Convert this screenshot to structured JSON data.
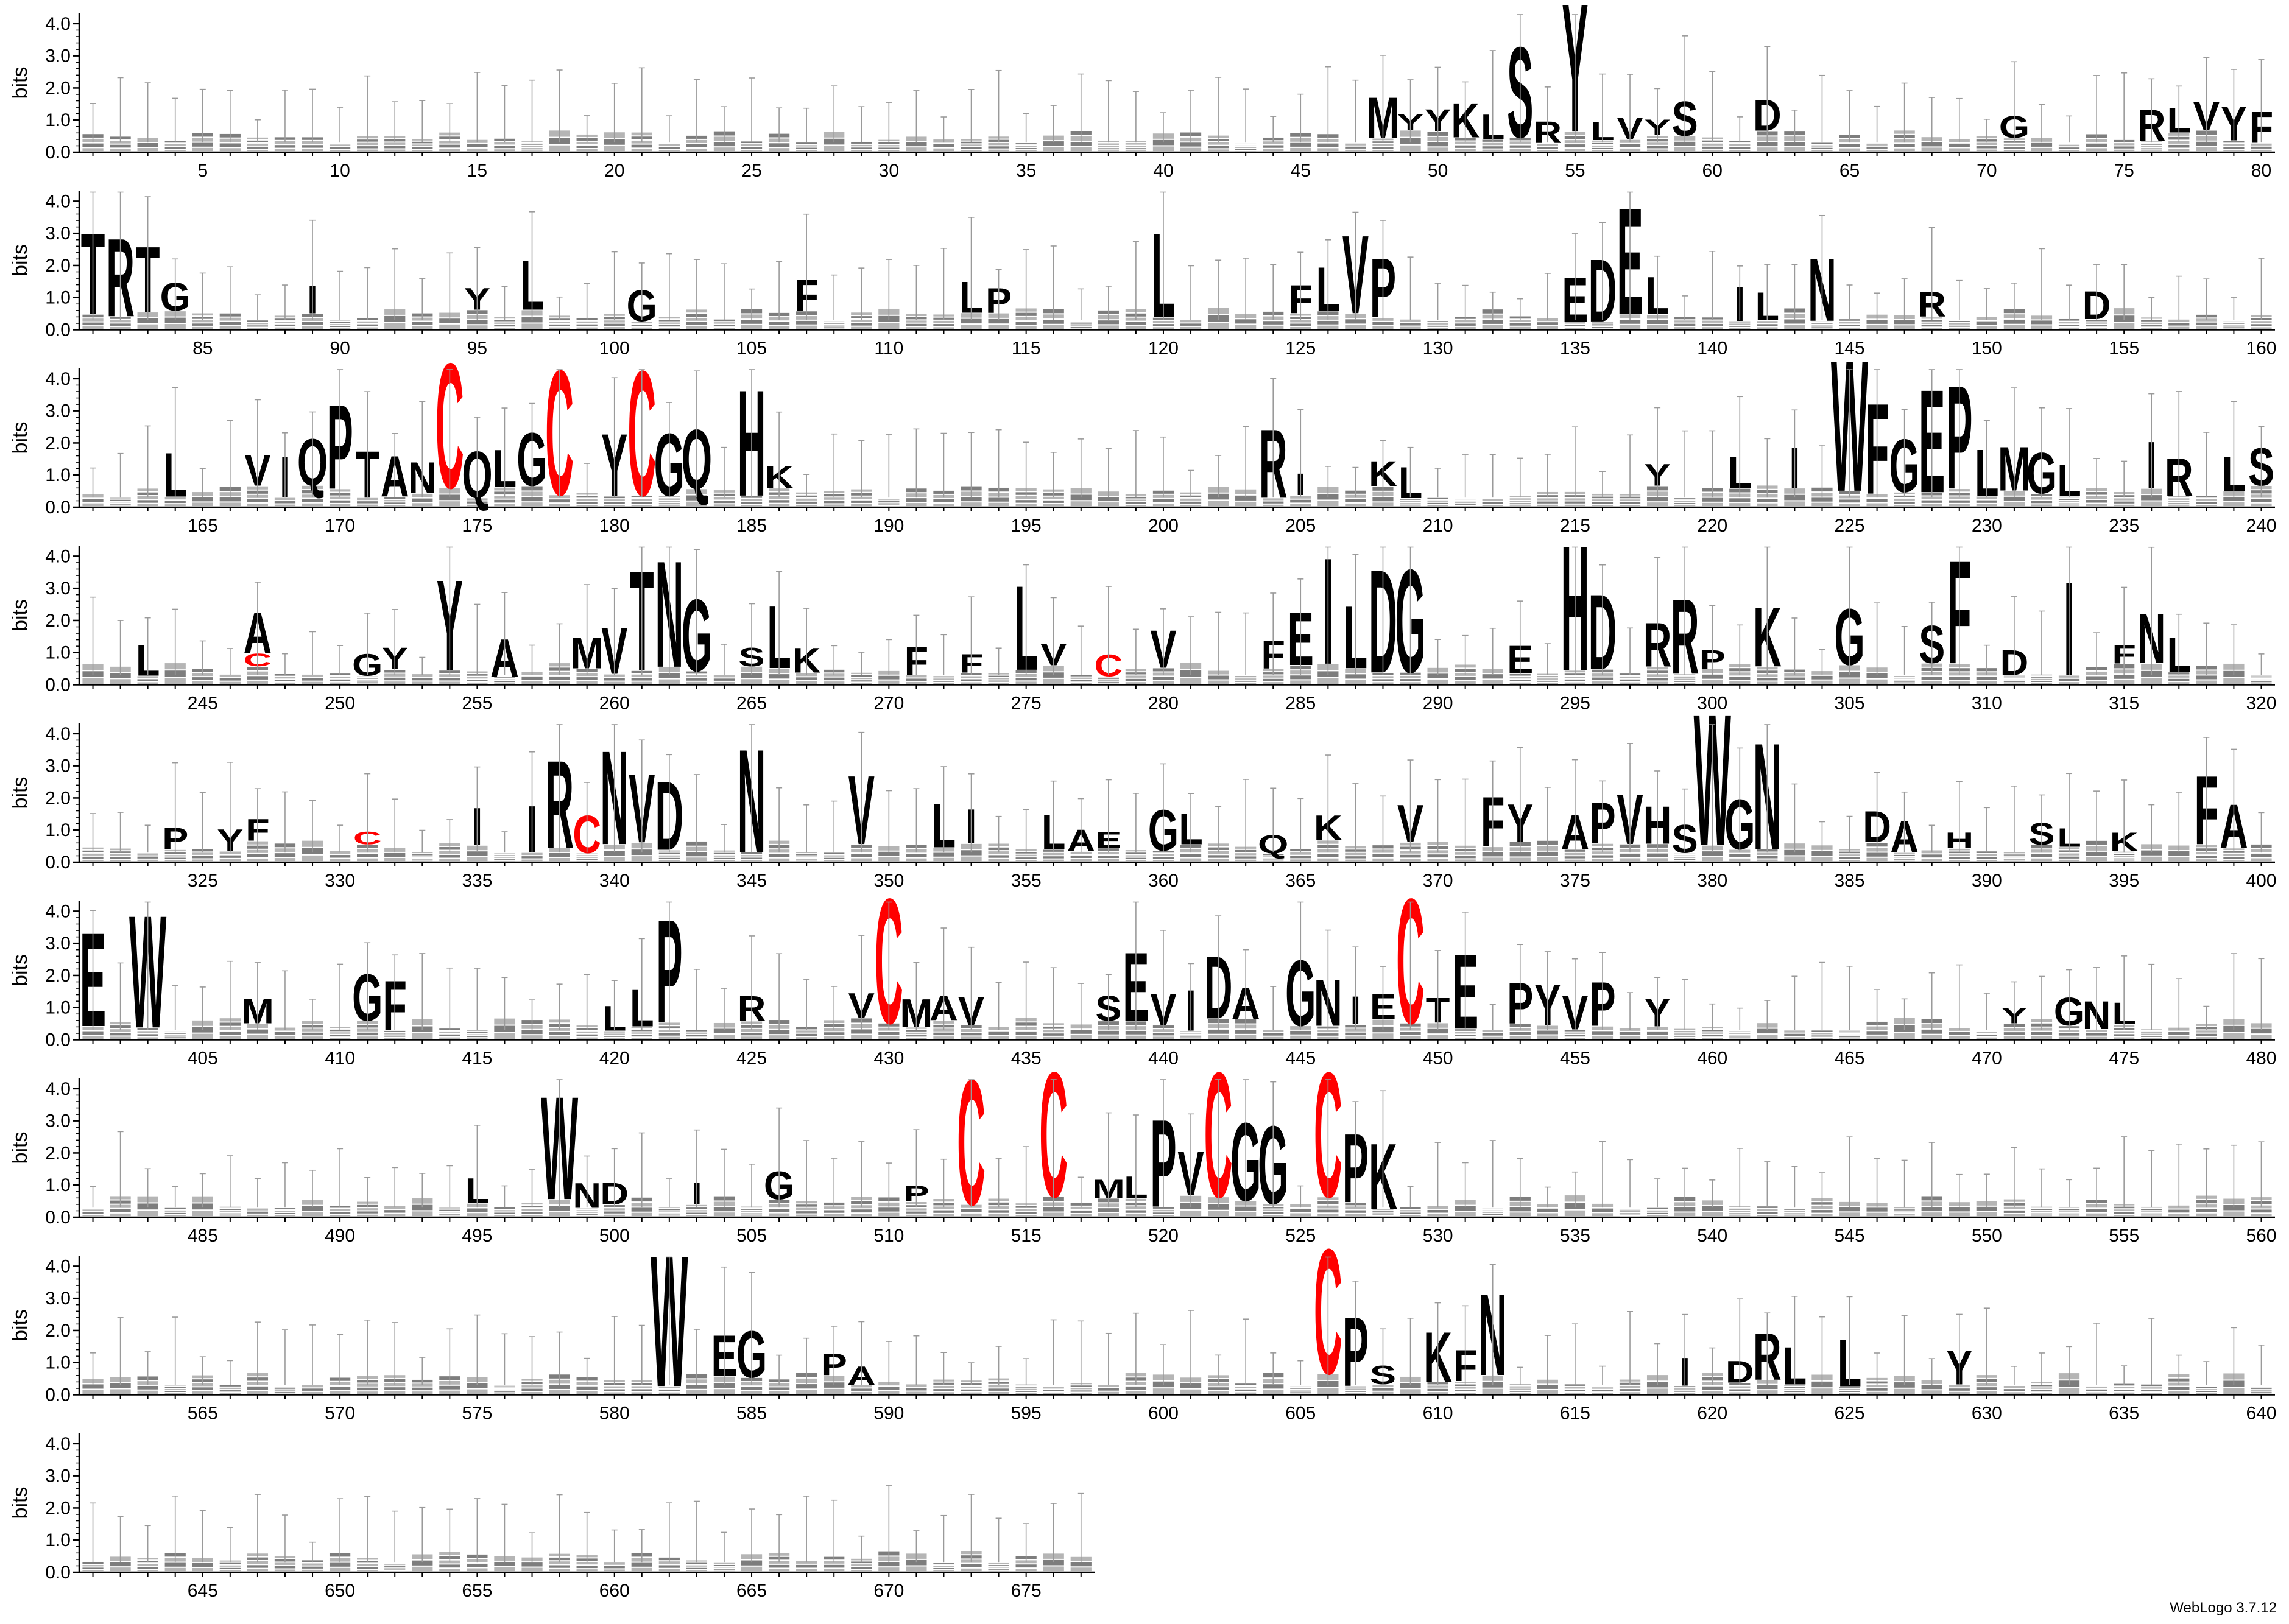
{
  "chart_data": {
    "type": "sequence-logo",
    "ylabel": "bits",
    "ylim": [
      0,
      4.32
    ],
    "yticks": [
      "0.0",
      "1.0",
      "2.0",
      "3.0",
      "4.0"
    ],
    "positions_per_row": 80,
    "first_position": 1,
    "last_position": 677,
    "colors": {
      "default": "#000000",
      "cysteine": "#ff0000",
      "errorbar": "#9a9a9a",
      "axis": "#000000"
    },
    "major_letters": [
      {
        "pos": 48,
        "letter": "M",
        "bits": 1.3
      },
      {
        "pos": 49,
        "letter": "Y",
        "bits": 0.5
      },
      {
        "pos": 50,
        "letter": "Y",
        "bits": 0.7
      },
      {
        "pos": 51,
        "letter": "K",
        "bits": 1.1
      },
      {
        "pos": 52,
        "letter": "L",
        "bits": 0.8
      },
      {
        "pos": 53,
        "letter": "S",
        "bits": 2.9
      },
      {
        "pos": 54,
        "letter": "R",
        "bits": 0.7
      },
      {
        "pos": 55,
        "letter": "Y",
        "bits": 4.1
      },
      {
        "pos": 56,
        "letter": "L",
        "bits": 0.6
      },
      {
        "pos": 57,
        "letter": "V",
        "bits": 0.7
      },
      {
        "pos": 58,
        "letter": "Y",
        "bits": 0.5
      },
      {
        "pos": 59,
        "letter": "S",
        "bits": 1.1
      },
      {
        "pos": 62,
        "letter": "D",
        "bits": 1.0
      },
      {
        "pos": 71,
        "letter": "G",
        "bits": 0.7
      },
      {
        "pos": 76,
        "letter": "R",
        "bits": 1.0
      },
      {
        "pos": 77,
        "letter": "L",
        "bits": 0.8
      },
      {
        "pos": 78,
        "letter": "V",
        "bits": 0.9
      },
      {
        "pos": 79,
        "letter": "Y",
        "bits": 1.1
      },
      {
        "pos": 80,
        "letter": "F",
        "bits": 1.0
      },
      {
        "pos": 81,
        "letter": "T",
        "bits": 2.6
      },
      {
        "pos": 82,
        "letter": "R",
        "bits": 2.5
      },
      {
        "pos": 83,
        "letter": "T",
        "bits": 2.1
      },
      {
        "pos": 84,
        "letter": "G",
        "bits": 0.9
      },
      {
        "pos": 89,
        "letter": "I",
        "bits": 0.9
      },
      {
        "pos": 95,
        "letter": "Y",
        "bits": 0.7
      },
      {
        "pos": 97,
        "letter": "L",
        "bits": 1.6
      },
      {
        "pos": 101,
        "letter": "G",
        "bits": 1.0
      },
      {
        "pos": 107,
        "letter": "F",
        "bits": 1.0
      },
      {
        "pos": 113,
        "letter": "L",
        "bits": 1.0
      },
      {
        "pos": 114,
        "letter": "P",
        "bits": 0.8
      },
      {
        "pos": 120,
        "letter": "L",
        "bits": 2.7
      },
      {
        "pos": 125,
        "letter": "F",
        "bits": 0.9
      },
      {
        "pos": 126,
        "letter": "L",
        "bits": 1.4
      },
      {
        "pos": 127,
        "letter": "V",
        "bits": 2.5
      },
      {
        "pos": 128,
        "letter": "P",
        "bits": 1.9
      },
      {
        "pos": 135,
        "letter": "E",
        "bits": 1.4
      },
      {
        "pos": 136,
        "letter": "D",
        "bits": 2.0
      },
      {
        "pos": 137,
        "letter": "E",
        "bits": 3.4
      },
      {
        "pos": 138,
        "letter": "L",
        "bits": 1.2
      },
      {
        "pos": 141,
        "letter": "I",
        "bits": 1.1
      },
      {
        "pos": 142,
        "letter": "L",
        "bits": 0.9
      },
      {
        "pos": 144,
        "letter": "N",
        "bits": 2.0
      },
      {
        "pos": 148,
        "letter": "R",
        "bits": 0.8
      },
      {
        "pos": 154,
        "letter": "D",
        "bits": 0.9
      },
      {
        "pos": 164,
        "letter": "L",
        "bits": 1.4
      },
      {
        "pos": 167,
        "letter": "V",
        "bits": 1.0
      },
      {
        "pos": 168,
        "letter": "I",
        "bits": 1.3
      },
      {
        "pos": 169,
        "letter": "Q",
        "bits": 1.5
      },
      {
        "pos": 170,
        "letter": "P",
        "bits": 2.7
      },
      {
        "pos": 171,
        "letter": "T",
        "bits": 1.5
      },
      {
        "pos": 172,
        "letter": "A",
        "bits": 1.3
      },
      {
        "pos": 173,
        "letter": "N",
        "bits": 1.0
      },
      {
        "pos": 174,
        "letter": "C",
        "bits": 4.0,
        "color": "cysteine"
      },
      {
        "pos": 175,
        "letter": "Q",
        "bits": 1.5
      },
      {
        "pos": 176,
        "letter": "L",
        "bits": 1.2
      },
      {
        "pos": 177,
        "letter": "G",
        "bits": 1.7
      },
      {
        "pos": 178,
        "letter": "C",
        "bits": 4.0,
        "color": "cysteine"
      },
      {
        "pos": 180,
        "letter": "Y",
        "bits": 2.0
      },
      {
        "pos": 181,
        "letter": "C",
        "bits": 4.0,
        "color": "cysteine"
      },
      {
        "pos": 182,
        "letter": "G",
        "bits": 2.0
      },
      {
        "pos": 183,
        "letter": "Q",
        "bits": 1.9
      },
      {
        "pos": 185,
        "letter": "H",
        "bits": 3.4
      },
      {
        "pos": 186,
        "letter": "K",
        "bits": 0.7
      },
      {
        "pos": 204,
        "letter": "R",
        "bits": 2.2
      },
      {
        "pos": 205,
        "letter": "I",
        "bits": 0.7
      },
      {
        "pos": 208,
        "letter": "K",
        "bits": 0.8
      },
      {
        "pos": 209,
        "letter": "L",
        "bits": 1.0
      },
      {
        "pos": 218,
        "letter": "Y",
        "bits": 0.7
      },
      {
        "pos": 221,
        "letter": "L",
        "bits": 1.0
      },
      {
        "pos": 223,
        "letter": "I",
        "bits": 1.3
      },
      {
        "pos": 225,
        "letter": "W",
        "bits": 4.2
      },
      {
        "pos": 226,
        "letter": "F",
        "bits": 2.9
      },
      {
        "pos": 227,
        "letter": "G",
        "bits": 1.7
      },
      {
        "pos": 228,
        "letter": "E",
        "bits": 3.3
      },
      {
        "pos": 229,
        "letter": "P",
        "bits": 3.3
      },
      {
        "pos": 230,
        "letter": "L",
        "bits": 1.5
      },
      {
        "pos": 231,
        "letter": "M",
        "bits": 1.4
      },
      {
        "pos": 232,
        "letter": "G",
        "bits": 1.3
      },
      {
        "pos": 233,
        "letter": "L",
        "bits": 1.0
      },
      {
        "pos": 236,
        "letter": "I",
        "bits": 1.5
      },
      {
        "pos": 237,
        "letter": "R",
        "bits": 1.2
      },
      {
        "pos": 239,
        "letter": "L",
        "bits": 1.1
      },
      {
        "pos": 240,
        "letter": "S",
        "bits": 1.2
      },
      {
        "pos": 243,
        "letter": "L",
        "bits": 1.0
      },
      {
        "pos": 247,
        "letter": "A",
        "bits": 1.3
      },
      {
        "pos": 247,
        "letter": "C",
        "bits": 0.4,
        "color": "cysteine"
      },
      {
        "pos": 251,
        "letter": "G",
        "bits": 0.7
      },
      {
        "pos": 252,
        "letter": "Y",
        "bits": 0.7
      },
      {
        "pos": 254,
        "letter": "Y",
        "bits": 2.9
      },
      {
        "pos": 256,
        "letter": "A",
        "bits": 1.2
      },
      {
        "pos": 259,
        "letter": "M",
        "bits": 1.0
      },
      {
        "pos": 260,
        "letter": "V",
        "bits": 1.5
      },
      {
        "pos": 261,
        "letter": "T",
        "bits": 3.2
      },
      {
        "pos": 262,
        "letter": "N",
        "bits": 3.4
      },
      {
        "pos": 263,
        "letter": "G",
        "bits": 2.3
      },
      {
        "pos": 265,
        "letter": "S",
        "bits": 0.6
      },
      {
        "pos": 266,
        "letter": "L",
        "bits": 2.0
      },
      {
        "pos": 267,
        "letter": "K",
        "bits": 0.8
      },
      {
        "pos": 271,
        "letter": "F",
        "bits": 0.9
      },
      {
        "pos": 273,
        "letter": "F",
        "bits": 0.6
      },
      {
        "pos": 275,
        "letter": "L",
        "bits": 2.7
      },
      {
        "pos": 276,
        "letter": "V",
        "bits": 0.7
      },
      {
        "pos": 278,
        "letter": "C",
        "bits": 0.7,
        "color": "cysteine"
      },
      {
        "pos": 280,
        "letter": "V",
        "bits": 1.2
      },
      {
        "pos": 284,
        "letter": "F",
        "bits": 0.9
      },
      {
        "pos": 285,
        "letter": "E",
        "bits": 1.7
      },
      {
        "pos": 286,
        "letter": "I",
        "bits": 3.4
      },
      {
        "pos": 287,
        "letter": "L",
        "bits": 2.0
      },
      {
        "pos": 288,
        "letter": "D",
        "bits": 3.3
      },
      {
        "pos": 289,
        "letter": "G",
        "bits": 3.3
      },
      {
        "pos": 293,
        "letter": "E",
        "bits": 0.9
      },
      {
        "pos": 295,
        "letter": "H",
        "bits": 4.0
      },
      {
        "pos": 296,
        "letter": "D",
        "bits": 2.4
      },
      {
        "pos": 298,
        "letter": "R",
        "bits": 1.4
      },
      {
        "pos": 299,
        "letter": "R",
        "bits": 2.4
      },
      {
        "pos": 300,
        "letter": "P",
        "bits": 0.6
      },
      {
        "pos": 302,
        "letter": "K",
        "bits": 1.9
      },
      {
        "pos": 305,
        "letter": "G",
        "bits": 1.8
      },
      {
        "pos": 308,
        "letter": "S",
        "bits": 1.2
      },
      {
        "pos": 309,
        "letter": "F",
        "bits": 3.3
      },
      {
        "pos": 311,
        "letter": "D",
        "bits": 0.8
      },
      {
        "pos": 313,
        "letter": "I",
        "bits": 3.0
      },
      {
        "pos": 315,
        "letter": "F",
        "bits": 0.6
      },
      {
        "pos": 316,
        "letter": "N",
        "bits": 1.6
      },
      {
        "pos": 317,
        "letter": "L",
        "bits": 1.1
      },
      {
        "pos": 324,
        "letter": "P",
        "bits": 0.7
      },
      {
        "pos": 326,
        "letter": "Y",
        "bits": 0.7
      },
      {
        "pos": 327,
        "letter": "F",
        "bits": 0.7
      },
      {
        "pos": 331,
        "letter": "C",
        "bits": 0.4,
        "color": "cysteine"
      },
      {
        "pos": 335,
        "letter": "I",
        "bits": 1.2
      },
      {
        "pos": 337,
        "letter": "I",
        "bits": 1.5
      },
      {
        "pos": 338,
        "letter": "R",
        "bits": 2.8
      },
      {
        "pos": 339,
        "letter": "C",
        "bits": 1.2,
        "color": "cysteine"
      },
      {
        "pos": 340,
        "letter": "N",
        "bits": 3.0
      },
      {
        "pos": 341,
        "letter": "V",
        "bits": 2.2
      },
      {
        "pos": 342,
        "letter": "D",
        "bits": 2.2
      },
      {
        "pos": 345,
        "letter": "N",
        "bits": 3.3
      },
      {
        "pos": 349,
        "letter": "V",
        "bits": 2.2
      },
      {
        "pos": 352,
        "letter": "L",
        "bits": 1.4
      },
      {
        "pos": 353,
        "letter": "I",
        "bits": 1.1
      },
      {
        "pos": 356,
        "letter": "L",
        "bits": 1.1
      },
      {
        "pos": 357,
        "letter": "A",
        "bits": 0.7
      },
      {
        "pos": 358,
        "letter": "E",
        "bits": 0.5
      },
      {
        "pos": 360,
        "letter": "G",
        "bits": 1.3
      },
      {
        "pos": 361,
        "letter": "L",
        "bits": 1.0
      },
      {
        "pos": 364,
        "letter": "Q",
        "bits": 0.6
      },
      {
        "pos": 366,
        "letter": "K",
        "bits": 0.8
      },
      {
        "pos": 369,
        "letter": "V",
        "bits": 1.2
      },
      {
        "pos": 372,
        "letter": "F",
        "bits": 1.6
      },
      {
        "pos": 373,
        "letter": "Y",
        "bits": 1.2
      },
      {
        "pos": 375,
        "letter": "A",
        "bits": 1.1
      },
      {
        "pos": 376,
        "letter": "P",
        "bits": 1.3
      },
      {
        "pos": 377,
        "letter": "V",
        "bits": 1.6
      },
      {
        "pos": 378,
        "letter": "H",
        "bits": 1.2
      },
      {
        "pos": 379,
        "letter": "S",
        "bits": 0.9
      },
      {
        "pos": 380,
        "letter": "W",
        "bits": 4.2
      },
      {
        "pos": 381,
        "letter": "G",
        "bits": 1.6
      },
      {
        "pos": 382,
        "letter": "N",
        "bits": 3.4
      },
      {
        "pos": 386,
        "letter": "D",
        "bits": 1.0
      },
      {
        "pos": 387,
        "letter": "A",
        "bits": 1.0
      },
      {
        "pos": 389,
        "letter": "H",
        "bits": 0.5
      },
      {
        "pos": 392,
        "letter": "S",
        "bits": 0.7
      },
      {
        "pos": 393,
        "letter": "L",
        "bits": 0.6
      },
      {
        "pos": 395,
        "letter": "K",
        "bits": 0.6
      },
      {
        "pos": 398,
        "letter": "F",
        "bits": 2.2
      },
      {
        "pos": 399,
        "letter": "A",
        "bits": 1.4
      },
      {
        "pos": 401,
        "letter": "E",
        "bits": 3.0
      },
      {
        "pos": 403,
        "letter": "W",
        "bits": 3.6
      },
      {
        "pos": 407,
        "letter": "M",
        "bits": 0.8
      },
      {
        "pos": 411,
        "letter": "G",
        "bits": 1.5
      },
      {
        "pos": 412,
        "letter": "F",
        "bits": 1.6
      },
      {
        "pos": 420,
        "letter": "L",
        "bits": 0.8
      },
      {
        "pos": 421,
        "letter": "L",
        "bits": 1.2
      },
      {
        "pos": 422,
        "letter": "P",
        "bits": 3.3
      },
      {
        "pos": 425,
        "letter": "R",
        "bits": 0.8
      },
      {
        "pos": 429,
        "letter": "V",
        "bits": 0.8
      },
      {
        "pos": 430,
        "letter": "C",
        "bits": 4.0,
        "color": "cysteine"
      },
      {
        "pos": 431,
        "letter": "M",
        "bits": 0.9
      },
      {
        "pos": 432,
        "letter": "A",
        "bits": 0.8
      },
      {
        "pos": 433,
        "letter": "V",
        "bits": 0.9
      },
      {
        "pos": 438,
        "letter": "S",
        "bits": 0.8
      },
      {
        "pos": 439,
        "letter": "E",
        "bits": 2.2
      },
      {
        "pos": 440,
        "letter": "V",
        "bits": 1.0
      },
      {
        "pos": 441,
        "letter": "I",
        "bits": 1.3
      },
      {
        "pos": 442,
        "letter": "D",
        "bits": 2.0
      },
      {
        "pos": 443,
        "letter": "A",
        "bits": 1.0
      },
      {
        "pos": 445,
        "letter": "G",
        "bits": 2.1
      },
      {
        "pos": 446,
        "letter": "N",
        "bits": 1.5
      },
      {
        "pos": 447,
        "letter": "I",
        "bits": 0.9
      },
      {
        "pos": 448,
        "letter": "E",
        "bits": 0.8
      },
      {
        "pos": 449,
        "letter": "C",
        "bits": 4.0,
        "color": "cysteine"
      },
      {
        "pos": 450,
        "letter": "T",
        "bits": 0.8
      },
      {
        "pos": 451,
        "letter": "E",
        "bits": 2.4
      },
      {
        "pos": 453,
        "letter": "P",
        "bits": 1.3
      },
      {
        "pos": 454,
        "letter": "Y",
        "bits": 1.3
      },
      {
        "pos": 455,
        "letter": "V",
        "bits": 1.1
      },
      {
        "pos": 456,
        "letter": "P",
        "bits": 1.4
      },
      {
        "pos": 458,
        "letter": "Y",
        "bits": 0.9
      },
      {
        "pos": 471,
        "letter": "Y",
        "bits": 0.5
      },
      {
        "pos": 473,
        "letter": "G",
        "bits": 0.9
      },
      {
        "pos": 474,
        "letter": "N",
        "bits": 0.9
      },
      {
        "pos": 475,
        "letter": "L",
        "bits": 0.7
      },
      {
        "pos": 495,
        "letter": "L",
        "bits": 0.8
      },
      {
        "pos": 498,
        "letter": "W",
        "bits": 3.3
      },
      {
        "pos": 499,
        "letter": "N",
        "bits": 0.8
      },
      {
        "pos": 500,
        "letter": "D",
        "bits": 0.7
      },
      {
        "pos": 503,
        "letter": "I",
        "bits": 0.7
      },
      {
        "pos": 506,
        "letter": "G",
        "bits": 0.9
      },
      {
        "pos": 511,
        "letter": "P",
        "bits": 0.5
      },
      {
        "pos": 513,
        "letter": "C",
        "bits": 4.0,
        "color": "cysteine"
      },
      {
        "pos": 516,
        "letter": "C",
        "bits": 4.0,
        "color": "cysteine"
      },
      {
        "pos": 518,
        "letter": "M",
        "bits": 0.6
      },
      {
        "pos": 519,
        "letter": "L",
        "bits": 0.7
      },
      {
        "pos": 520,
        "letter": "P",
        "bits": 2.8
      },
      {
        "pos": 521,
        "letter": "V",
        "bits": 1.4
      },
      {
        "pos": 522,
        "letter": "C",
        "bits": 4.0,
        "color": "cysteine"
      },
      {
        "pos": 523,
        "letter": "G",
        "bits": 2.5
      },
      {
        "pos": 524,
        "letter": "G",
        "bits": 2.5
      },
      {
        "pos": 526,
        "letter": "C",
        "bits": 4.0,
        "color": "cysteine"
      },
      {
        "pos": 527,
        "letter": "P",
        "bits": 2.2
      },
      {
        "pos": 528,
        "letter": "K",
        "bits": 2.1
      },
      {
        "pos": 582,
        "letter": "W",
        "bits": 4.2
      },
      {
        "pos": 584,
        "letter": "E",
        "bits": 1.3
      },
      {
        "pos": 585,
        "letter": "G",
        "bits": 1.5
      },
      {
        "pos": 588,
        "letter": "P",
        "bits": 0.7
      },
      {
        "pos": 589,
        "letter": "A",
        "bits": 0.6
      },
      {
        "pos": 606,
        "letter": "C",
        "bits": 4.0,
        "color": "cysteine"
      },
      {
        "pos": 607,
        "letter": "P",
        "bits": 2.2
      },
      {
        "pos": 608,
        "letter": "S",
        "bits": 0.6
      },
      {
        "pos": 610,
        "letter": "K",
        "bits": 1.6
      },
      {
        "pos": 611,
        "letter": "F",
        "bits": 1.0
      },
      {
        "pos": 612,
        "letter": "N",
        "bits": 2.6
      },
      {
        "pos": 619,
        "letter": "I",
        "bits": 0.9
      },
      {
        "pos": 621,
        "letter": "D",
        "bits": 0.7
      },
      {
        "pos": 622,
        "letter": "R",
        "bits": 1.5
      },
      {
        "pos": 623,
        "letter": "L",
        "bits": 1.2
      },
      {
        "pos": 625,
        "letter": "L",
        "bits": 1.5
      },
      {
        "pos": 629,
        "letter": "Y",
        "bits": 1.1
      }
    ]
  },
  "footer": {
    "credit": "WebLogo 3.7.12"
  }
}
